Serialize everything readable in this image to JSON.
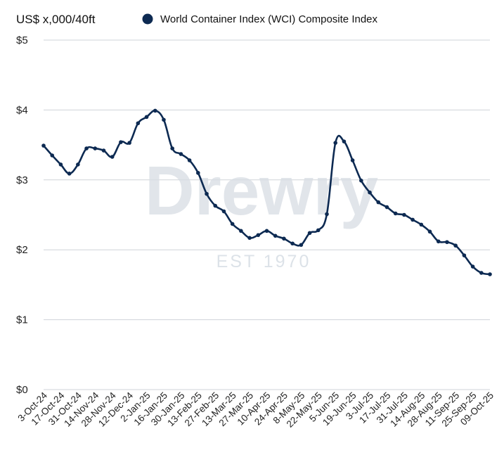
{
  "chart_data": {
    "type": "line",
    "unit_label": "US$ x,000/40ft",
    "series": [
      {
        "name": "World Container Index (WCI) Composite Index",
        "color": "#0d2a52",
        "values": [
          3.49,
          3.35,
          3.22,
          3.09,
          3.22,
          3.45,
          3.45,
          3.42,
          3.33,
          3.54,
          3.53,
          3.81,
          3.9,
          3.99,
          3.86,
          3.45,
          3.37,
          3.28,
          3.1,
          2.8,
          2.63,
          2.55,
          2.37,
          2.27,
          2.17,
          2.21,
          2.27,
          2.2,
          2.16,
          2.09,
          2.07,
          2.24,
          2.28,
          2.51,
          3.53,
          3.55,
          3.28,
          2.99,
          2.82,
          2.68,
          2.61,
          2.52,
          2.5,
          2.43,
          2.36,
          2.26,
          2.12,
          2.11,
          2.06,
          1.92,
          1.76,
          1.67,
          1.65
        ]
      }
    ],
    "x_tick_labels": [
      "3-Oct-24",
      "17-Oct-24",
      "31-Oct-24",
      "14-Nov-24",
      "28-Nov-24",
      "12-Dec-24",
      "2-Jan-25",
      "16-Jan-25",
      "30-Jan-25",
      "13-Feb-25",
      "27-Feb-25",
      "13-Mar-25",
      "27-Mar-25",
      "10-Apr-25",
      "24-Apr-25",
      "8-May-25",
      "22-May-25",
      "5-Jun-25",
      "19-Jun-25",
      "3-Jul-25",
      "17-Jul-25",
      "31-Jul-25",
      "14-Aug-25",
      "28-Aug-25",
      "11-Sep-25",
      "25-Sep-25",
      "09-Oct-25"
    ],
    "y_tick_labels": [
      "$0",
      "$1",
      "$2",
      "$3",
      "$4",
      "$5"
    ],
    "ylim": [
      0,
      5
    ],
    "grid": "horizontal",
    "legend_position": "top"
  },
  "watermark": {
    "main": "Drewry",
    "sub": "EST 1970"
  }
}
